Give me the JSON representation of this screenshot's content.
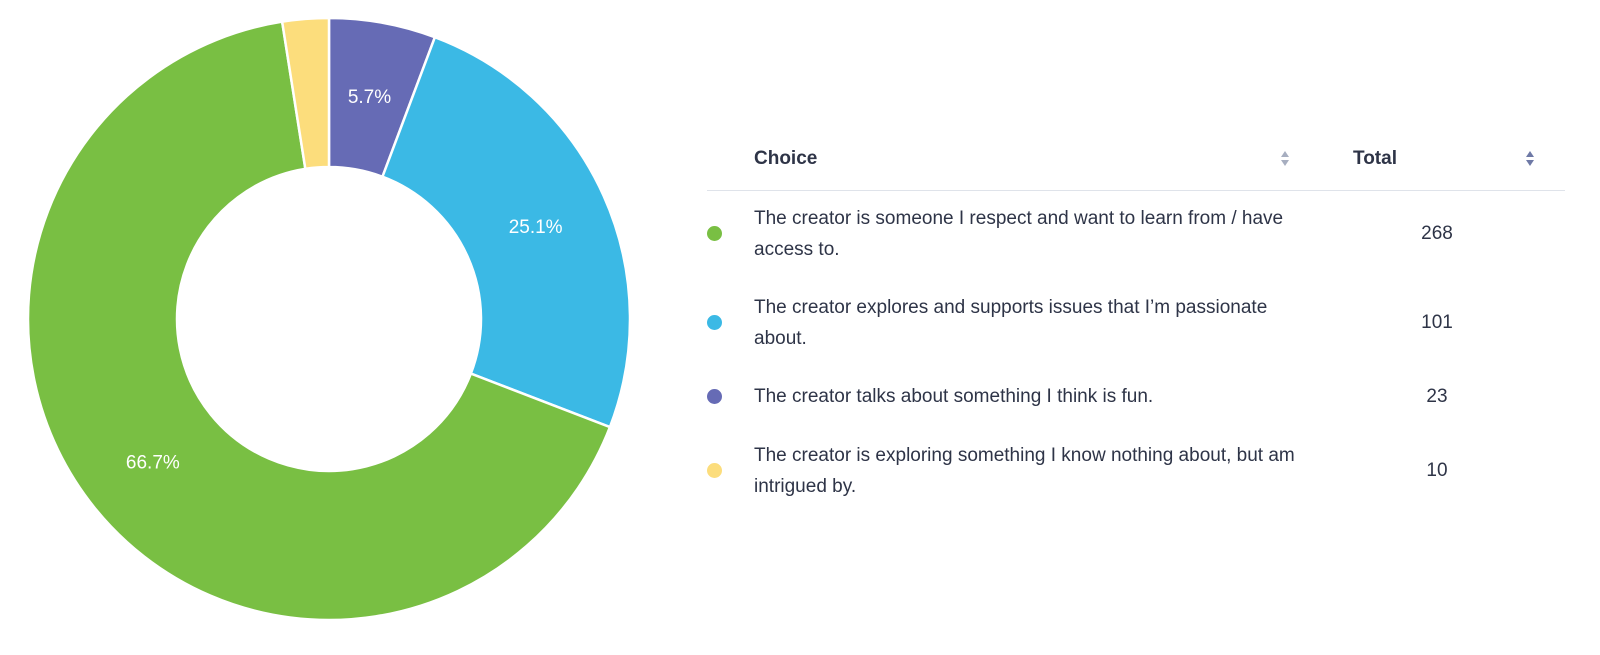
{
  "chart_data": {
    "type": "pie",
    "donut": true,
    "labels": [
      "The creator talks about something I think is fun.",
      "The creator explores and supports issues that I’m passionate about.",
      "The creator is someone I respect and want to learn from / have access to.",
      "The creator is exploring something I know nothing about, but am intrigued by."
    ],
    "values": [
      23,
      101,
      268,
      10
    ],
    "slice_labels": [
      "5.7%",
      "25.1%",
      "66.7%",
      ""
    ],
    "colors": [
      "#666bb5",
      "#3bb9e5",
      "#79bf43",
      "#fcdd7c"
    ]
  },
  "table": {
    "headers": {
      "choice": "Choice",
      "total": "Total"
    },
    "rows": [
      {
        "choice": "The creator is someone I respect and want to learn from / have access to.",
        "total": "268",
        "color": "#79bf43"
      },
      {
        "choice": "The creator explores and supports issues that I’m passionate about.",
        "total": "101",
        "color": "#3bb9e5"
      },
      {
        "choice": "The creator talks about something I think is fun.",
        "total": "23",
        "color": "#666bb5"
      },
      {
        "choice": "The creator is exploring something I know nothing about, but am intrigued by.",
        "total": "10",
        "color": "#fcdd7c"
      }
    ]
  }
}
